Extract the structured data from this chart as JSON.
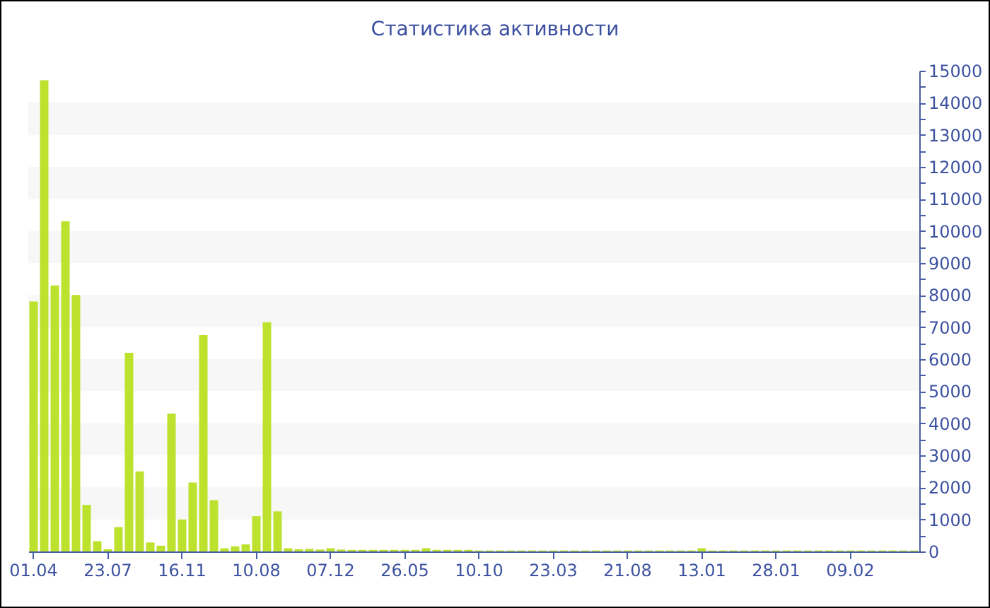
{
  "chart_data": {
    "type": "bar",
    "title": "Статистика активности",
    "categories": [
      "01.04",
      null,
      null,
      null,
      null,
      null,
      null,
      "23.07",
      null,
      null,
      null,
      null,
      null,
      null,
      "16.11",
      null,
      null,
      null,
      null,
      null,
      null,
      "10.08",
      null,
      null,
      null,
      null,
      null,
      null,
      "07.12",
      null,
      null,
      null,
      null,
      null,
      null,
      "26.05",
      null,
      null,
      null,
      null,
      null,
      null,
      "10.10",
      null,
      null,
      null,
      null,
      null,
      null,
      "23.03",
      null,
      null,
      null,
      null,
      null,
      null,
      "21.08",
      null,
      null,
      null,
      null,
      null,
      null,
      "13.01",
      null,
      null,
      null,
      null,
      null,
      null,
      "28.01",
      null,
      null,
      null,
      null,
      null,
      null,
      "09.02",
      null,
      null,
      null,
      null,
      null,
      null
    ],
    "values": [
      7800,
      14700,
      8300,
      10300,
      8000,
      1450,
      320,
      70,
      760,
      6200,
      2500,
      280,
      180,
      4300,
      1000,
      2150,
      6750,
      1600,
      100,
      160,
      220,
      1100,
      7150,
      1250,
      100,
      70,
      80,
      60,
      100,
      60,
      50,
      50,
      50,
      50,
      50,
      50,
      50,
      100,
      50,
      50,
      50,
      50,
      30,
      30,
      30,
      30,
      30,
      30,
      30,
      30,
      30,
      30,
      30,
      30,
      30,
      30,
      30,
      30,
      30,
      30,
      30,
      30,
      30,
      100,
      30,
      30,
      30,
      30,
      30,
      30,
      30,
      30,
      30,
      30,
      30,
      30,
      30,
      30,
      30,
      30,
      30,
      30,
      30,
      30
    ],
    "color": "#bde22e",
    "ylim": [
      0,
      15000
    ],
    "yticks": [
      0,
      {
        "value": 500,
        "label": null
      },
      1000,
      {
        "value": 1500,
        "label": null
      },
      2000,
      {
        "value": 2500,
        "label": null
      },
      3000,
      {
        "value": 3500,
        "label": null
      },
      4000,
      {
        "value": 4500,
        "label": null
      },
      5000,
      {
        "value": 5500,
        "label": null
      },
      6000,
      {
        "value": 6500,
        "label": null
      },
      7000,
      {
        "value": 7500,
        "label": null
      },
      8000,
      {
        "value": 8500,
        "label": null
      },
      9000,
      {
        "value": 9500,
        "label": null
      },
      10000,
      {
        "value": 10500,
        "label": null
      },
      11000,
      {
        "value": 11500,
        "label": null
      },
      12000,
      {
        "value": 12500,
        "label": null
      },
      13000,
      {
        "value": 13500,
        "label": null
      },
      14000,
      {
        "value": 14500,
        "label": null
      },
      15000
    ],
    "bands": [
      {
        "axis": "y",
        "from": 1000,
        "to": 2000,
        "color": "#f7f7f7"
      },
      {
        "axis": "y",
        "from": 3000,
        "to": 4000,
        "color": "#f7f7f7"
      },
      {
        "axis": "y",
        "from": 5000,
        "to": 6000,
        "color": "#f7f7f7"
      },
      {
        "axis": "y",
        "from": 7000,
        "to": 8000,
        "color": "#f7f7f7"
      },
      {
        "axis": "y",
        "from": 9000,
        "to": 10000,
        "color": "#f7f7f7"
      },
      {
        "axis": "y",
        "from": 11000,
        "to": 12000,
        "color": "#f7f7f7"
      },
      {
        "axis": "y",
        "from": 13000,
        "to": 14000,
        "color": "#f7f7f7"
      }
    ]
  }
}
